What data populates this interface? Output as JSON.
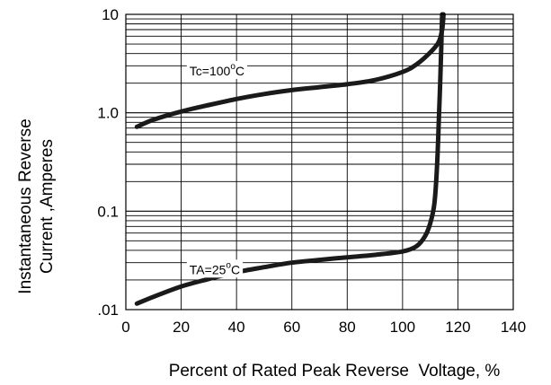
{
  "chart_data": {
    "type": "line",
    "xlabel": "Percent of Rated Peak Reverse  Voltage, %",
    "ylabel_line1": "Instantaneous Reverse",
    "ylabel_line2": "Current ,Amperes",
    "xlim": [
      0,
      140
    ],
    "ylim": [
      0.01,
      10
    ],
    "yscale": "log",
    "grid": true,
    "x_ticks": [
      {
        "value": 0,
        "label": "0"
      },
      {
        "value": 20,
        "label": "20"
      },
      {
        "value": 40,
        "label": "40"
      },
      {
        "value": 60,
        "label": "60"
      },
      {
        "value": 80,
        "label": "80"
      },
      {
        "value": 100,
        "label": "100"
      },
      {
        "value": 120,
        "label": "120"
      },
      {
        "value": 140,
        "label": "140"
      }
    ],
    "y_ticks": [
      {
        "value": 0.01,
        "label": ".01"
      },
      {
        "value": 0.1,
        "label": "0.1"
      },
      {
        "value": 1,
        "label": "1.0"
      },
      {
        "value": 10,
        "label": "10"
      }
    ],
    "series": [
      {
        "annotation": {
          "text": "Tc=100",
          "degree": "o",
          "unit": "C",
          "x": 23,
          "y": 2.4
        },
        "points": [
          [
            4,
            0.72
          ],
          [
            10,
            0.85
          ],
          [
            20,
            1.03
          ],
          [
            30,
            1.2
          ],
          [
            40,
            1.38
          ],
          [
            50,
            1.55
          ],
          [
            60,
            1.7
          ],
          [
            70,
            1.82
          ],
          [
            80,
            1.95
          ],
          [
            90,
            2.15
          ],
          [
            100,
            2.6
          ],
          [
            105,
            3.1
          ],
          [
            110,
            4.1
          ],
          [
            113,
            5.2
          ],
          [
            114.3,
            7.0
          ],
          [
            114.8,
            10
          ]
        ]
      },
      {
        "annotation": {
          "text": "TA=25",
          "degree": "o",
          "unit": "C",
          "x": 23,
          "y": 0.023
        },
        "points": [
          [
            4,
            0.0115
          ],
          [
            10,
            0.0135
          ],
          [
            20,
            0.0172
          ],
          [
            30,
            0.0205
          ],
          [
            40,
            0.024
          ],
          [
            50,
            0.027
          ],
          [
            60,
            0.03
          ],
          [
            70,
            0.032
          ],
          [
            80,
            0.034
          ],
          [
            90,
            0.036
          ],
          [
            100,
            0.039
          ],
          [
            105,
            0.044
          ],
          [
            108,
            0.055
          ],
          [
            110,
            0.075
          ],
          [
            111.5,
            0.12
          ],
          [
            112.5,
            0.3
          ],
          [
            113.2,
            1.0
          ],
          [
            113.8,
            3.0
          ],
          [
            114.3,
            10
          ]
        ]
      }
    ]
  },
  "colors": {
    "curve": "#1a1a1a",
    "grid": "#000000",
    "background": "#ffffff"
  }
}
